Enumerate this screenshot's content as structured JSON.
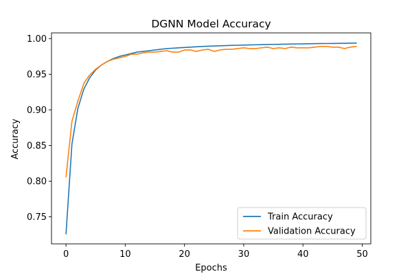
{
  "chart_data": {
    "type": "line",
    "title": "DGNN Model Accuracy",
    "xlabel": "Epochs",
    "ylabel": "Accuracy",
    "xlim": [
      -2.45,
      51.45
    ],
    "ylim": [
      0.712,
      1.008
    ],
    "x_ticks": [
      0,
      10,
      20,
      30,
      40,
      50
    ],
    "x_tick_labels": [
      "0",
      "10",
      "20",
      "30",
      "40",
      "50"
    ],
    "y_ticks": [
      0.75,
      0.8,
      0.85,
      0.9,
      0.95,
      1.0
    ],
    "y_tick_labels": [
      "0.75",
      "0.80",
      "0.85",
      "0.90",
      "0.95",
      "1.00"
    ],
    "grid": false,
    "legend_position": "bottom-right",
    "x": [
      0,
      1,
      2,
      3,
      4,
      5,
      6,
      7,
      8,
      9,
      10,
      11,
      12,
      13,
      14,
      15,
      16,
      17,
      18,
      19,
      20,
      21,
      22,
      23,
      24,
      25,
      26,
      27,
      28,
      29,
      30,
      31,
      32,
      33,
      34,
      35,
      36,
      37,
      38,
      39,
      40,
      41,
      42,
      43,
      44,
      45,
      46,
      47,
      48,
      49
    ],
    "series": [
      {
        "name": "Train Accuracy",
        "color": "#1f77b4",
        "values": [
          0.726,
          0.852,
          0.902,
          0.929,
          0.945,
          0.956,
          0.963,
          0.968,
          0.972,
          0.975,
          0.977,
          0.979,
          0.981,
          0.982,
          0.983,
          0.984,
          0.985,
          0.986,
          0.9865,
          0.987,
          0.9875,
          0.988,
          0.9885,
          0.989,
          0.9893,
          0.9896,
          0.9899,
          0.9902,
          0.9905,
          0.9907,
          0.9909,
          0.9911,
          0.9913,
          0.9915,
          0.9917,
          0.9919,
          0.992,
          0.9922,
          0.9923,
          0.9925,
          0.9926,
          0.9928,
          0.9929,
          0.993,
          0.9931,
          0.9932,
          0.9933,
          0.9934,
          0.9935,
          0.9936
        ]
      },
      {
        "name": "Validation Accuracy",
        "color": "#ff7f0e",
        "values": [
          0.806,
          0.884,
          0.912,
          0.937,
          0.949,
          0.957,
          0.963,
          0.968,
          0.971,
          0.973,
          0.975,
          0.978,
          0.978,
          0.98,
          0.981,
          0.981,
          0.982,
          0.983,
          0.981,
          0.981,
          0.984,
          0.984,
          0.982,
          0.984,
          0.985,
          0.982,
          0.984,
          0.985,
          0.985,
          0.986,
          0.987,
          0.986,
          0.986,
          0.987,
          0.988,
          0.986,
          0.987,
          0.986,
          0.988,
          0.987,
          0.987,
          0.987,
          0.988,
          0.989,
          0.989,
          0.988,
          0.988,
          0.986,
          0.988,
          0.989
        ]
      }
    ]
  }
}
